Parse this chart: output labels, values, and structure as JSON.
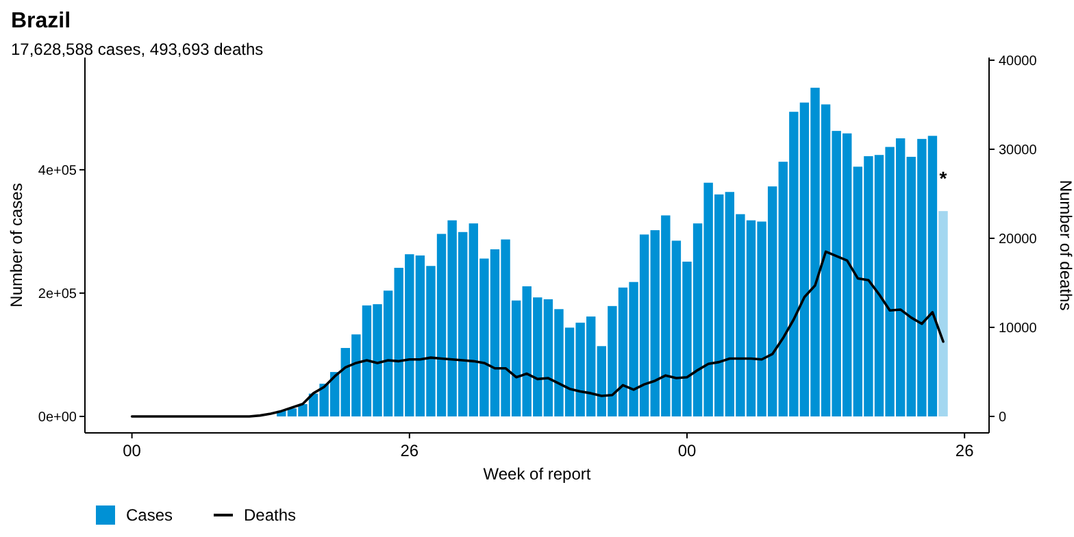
{
  "chart_data": {
    "type": "bar",
    "title": "Brazil",
    "subtitle": "17,628,588 cases, 493,693 deaths",
    "xlabel": "Week of report",
    "ylabel": "Number of cases",
    "y2label": "Number of deaths",
    "categories": [
      "00",
      null,
      null,
      null,
      null,
      null,
      null,
      null,
      null,
      null,
      null,
      null,
      null,
      null,
      null,
      null,
      null,
      null,
      null,
      null,
      null,
      null,
      null,
      null,
      null,
      null,
      "26",
      null,
      null,
      null,
      null,
      null,
      null,
      null,
      null,
      null,
      null,
      null,
      null,
      null,
      null,
      null,
      null,
      null,
      null,
      null,
      null,
      null,
      null,
      null,
      null,
      null,
      "00",
      null,
      null,
      null,
      null,
      null,
      null,
      null,
      null,
      null,
      null,
      null,
      null,
      null,
      null,
      null,
      null,
      null,
      null,
      null,
      null,
      null,
      null,
      null,
      null,
      null,
      "26"
    ],
    "ylim": [
      -26700,
      582000
    ],
    "yticks": [
      {
        "value": 0,
        "label": "0e+00"
      },
      {
        "value": 200000,
        "label": "2e+05"
      },
      {
        "value": 400000,
        "label": "4e+05"
      }
    ],
    "y2lim": [
      -1850,
      40300
    ],
    "y2ticks": [
      0,
      10000,
      20000,
      30000,
      40000
    ],
    "legend": "bottom left",
    "grid": false,
    "annotations": [
      {
        "text": "*",
        "y": 375000
      }
    ],
    "series": [
      {
        "name": "Cases",
        "colors": [
          null,
          null,
          null,
          null,
          null,
          null,
          null,
          null,
          null,
          null,
          null,
          null,
          null,
          null,
          "#0091d5",
          "#0091d5",
          "#0091d5",
          "#0091d5",
          "#0091d5",
          "#0091d5",
          "#0091d5",
          "#0091d5",
          "#0091d5",
          "#0091d5",
          "#0091d5",
          "#0091d5",
          "#0091d5",
          "#0091d5",
          "#0091d5",
          "#0091d5",
          "#0091d5",
          "#0091d5",
          "#0091d5",
          "#0091d5",
          "#0091d5",
          "#0091d5",
          "#0091d5",
          "#0091d5",
          "#0091d5",
          "#0091d5",
          "#0091d5",
          "#0091d5",
          "#0091d5",
          "#0091d5",
          "#0091d5",
          "#0091d5",
          "#0091d5",
          "#0091d5",
          "#0091d5",
          "#0091d5",
          "#0091d5",
          "#0091d5",
          "#0091d5",
          "#0091d5",
          "#0091d5",
          "#0091d5",
          "#0091d5",
          "#0091d5",
          "#0091d5",
          "#0091d5",
          "#0091d5",
          "#0091d5",
          "#0091d5",
          "#0091d5",
          "#0091d5",
          "#0091d5",
          "#0091d5",
          "#0091d5",
          "#0091d5",
          "#0091d5",
          "#0091d5",
          "#0091d5",
          "#0091d5",
          "#0091d5",
          "#0091d5",
          "#0091d5",
          "#a3d7f0",
          null,
          null
        ],
        "values": [
          null,
          null,
          null,
          null,
          null,
          null,
          null,
          null,
          null,
          null,
          null,
          null,
          null,
          null,
          9000,
          13000,
          20000,
          37000,
          53000,
          72000,
          111000,
          133000,
          180000,
          182000,
          204000,
          241000,
          263000,
          261000,
          244000,
          296000,
          318000,
          299000,
          313000,
          256000,
          271000,
          287000,
          188000,
          211000,
          193000,
          190000,
          174000,
          144000,
          152000,
          162000,
          114000,
          179000,
          209000,
          218000,
          295000,
          302000,
          326000,
          285000,
          251000,
          313000,
          379000,
          360000,
          364000,
          328000,
          318000,
          316000,
          373000,
          413000,
          494000,
          509000,
          533000,
          506000,
          463000,
          459000,
          405000,
          422000,
          424000,
          437000,
          451000,
          421000,
          450000,
          455000,
          333000,
          null,
          null
        ]
      },
      {
        "name": "Deaths",
        "type": "line",
        "axis": "y2",
        "color": "#000000",
        "values": [
          0,
          0,
          0,
          0,
          0,
          0,
          0,
          0,
          0,
          0,
          0,
          0,
          100,
          300,
          600,
          1000,
          1400,
          2600,
          3300,
          4500,
          5500,
          6000,
          6300,
          6000,
          6300,
          6200,
          6400,
          6400,
          6600,
          6500,
          6400,
          6300,
          6200,
          6000,
          5400,
          5400,
          4400,
          4800,
          4200,
          4300,
          3700,
          3100,
          2800,
          2600,
          2300,
          2400,
          3500,
          3000,
          3600,
          4000,
          4600,
          4300,
          4400,
          5200,
          5900,
          6100,
          6500,
          6500,
          6500,
          6400,
          7000,
          8800,
          10900,
          13400,
          14700,
          18500,
          18000,
          17500,
          15500,
          15300,
          13700,
          11900,
          12000,
          11100,
          10400,
          11700,
          8400,
          null,
          null
        ]
      }
    ]
  }
}
